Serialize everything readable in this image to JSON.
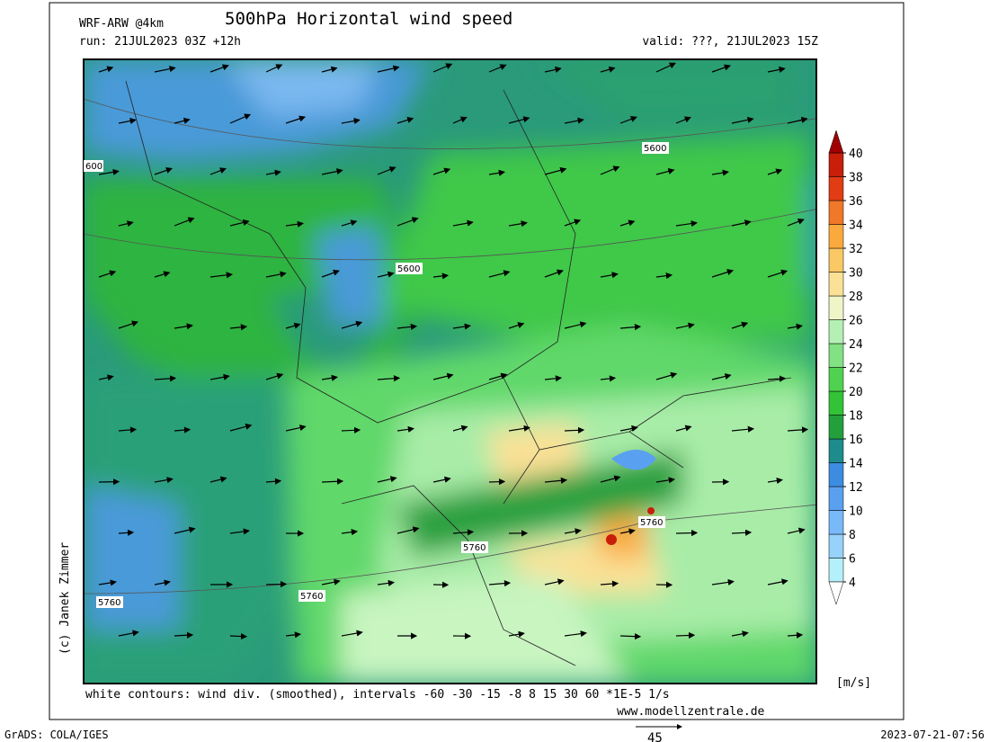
{
  "header": {
    "model": "WRF-ARW @4km",
    "title": "500hPa Horizontal wind speed",
    "run": "run: 21JUL2023 03Z +12h",
    "valid": "valid: ???, 21JUL2023 15Z"
  },
  "map": {
    "contour_labels": [
      "5600",
      "5600",
      "600",
      "5760",
      "5760",
      "5760",
      "5760"
    ],
    "credit": "(c) Janek Zimmer"
  },
  "colorbar": {
    "ticks": [
      4,
      6,
      8,
      10,
      12,
      14,
      16,
      18,
      20,
      22,
      24,
      26,
      28,
      30,
      32,
      34,
      36,
      38,
      40
    ],
    "colors": [
      "#b4f0fa",
      "#96d2fa",
      "#78b9fa",
      "#5aa0f0",
      "#3c8ce1",
      "#1e8c8c",
      "#23a03c",
      "#32c337",
      "#50d250",
      "#82e182",
      "#b4f0b4",
      "#f0f5c8",
      "#fae196",
      "#fac864",
      "#faaa3c",
      "#f07828",
      "#e13c14",
      "#c81e0a"
    ],
    "low_color": "#ffffff",
    "high_color": "#a00000",
    "unit": "[m/s]"
  },
  "footer": {
    "note": "white contours: wind div. (smoothed), intervals -60 -30 -15 -8 8 15 30 60 *1E-5 1/s",
    "website": "www.modellzentrale.de",
    "software": "GrADS: COLA/IGES",
    "timestamp": "2023-07-21-07:56",
    "vector_scale": "45"
  }
}
